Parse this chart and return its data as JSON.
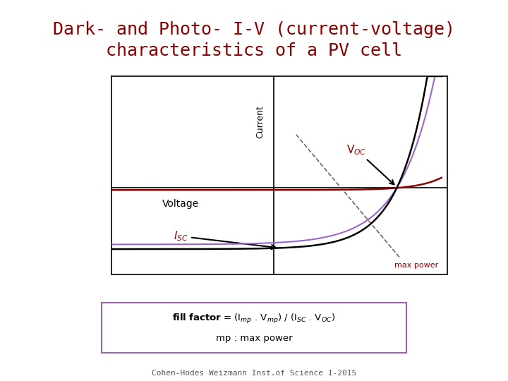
{
  "title_line1": "Dark- and Photo- I-V (current-voltage)",
  "title_line2": "characteristics of a PV cell",
  "title_color": "#8B0000",
  "title_fontsize": 18,
  "bg_color": "#FFFFFF",
  "box_color": "#000000",
  "footer": "Cohen-Hodes Weizmann Inst.of Science 1-2015",
  "footer_fontsize": 8,
  "formula_box_color": "#9966AA",
  "voc_label": "V$_{OC}$",
  "isc_label": "I$_{SC}$",
  "max_power_label": "max power",
  "voltage_label": "Voltage",
  "current_label": "Current",
  "dark_curve_color": "#8B0000",
  "photo_curve_color1": "#000000",
  "photo_curve_color2": "#9966CC",
  "dashed_line_color": "#666666",
  "voc": 1.55,
  "isc": -1.2,
  "y_axis_x": 0.45,
  "x_axis_y": 0.0,
  "xlim": [
    -1.0,
    2.0
  ],
  "ylim": [
    -1.7,
    2.2
  ]
}
